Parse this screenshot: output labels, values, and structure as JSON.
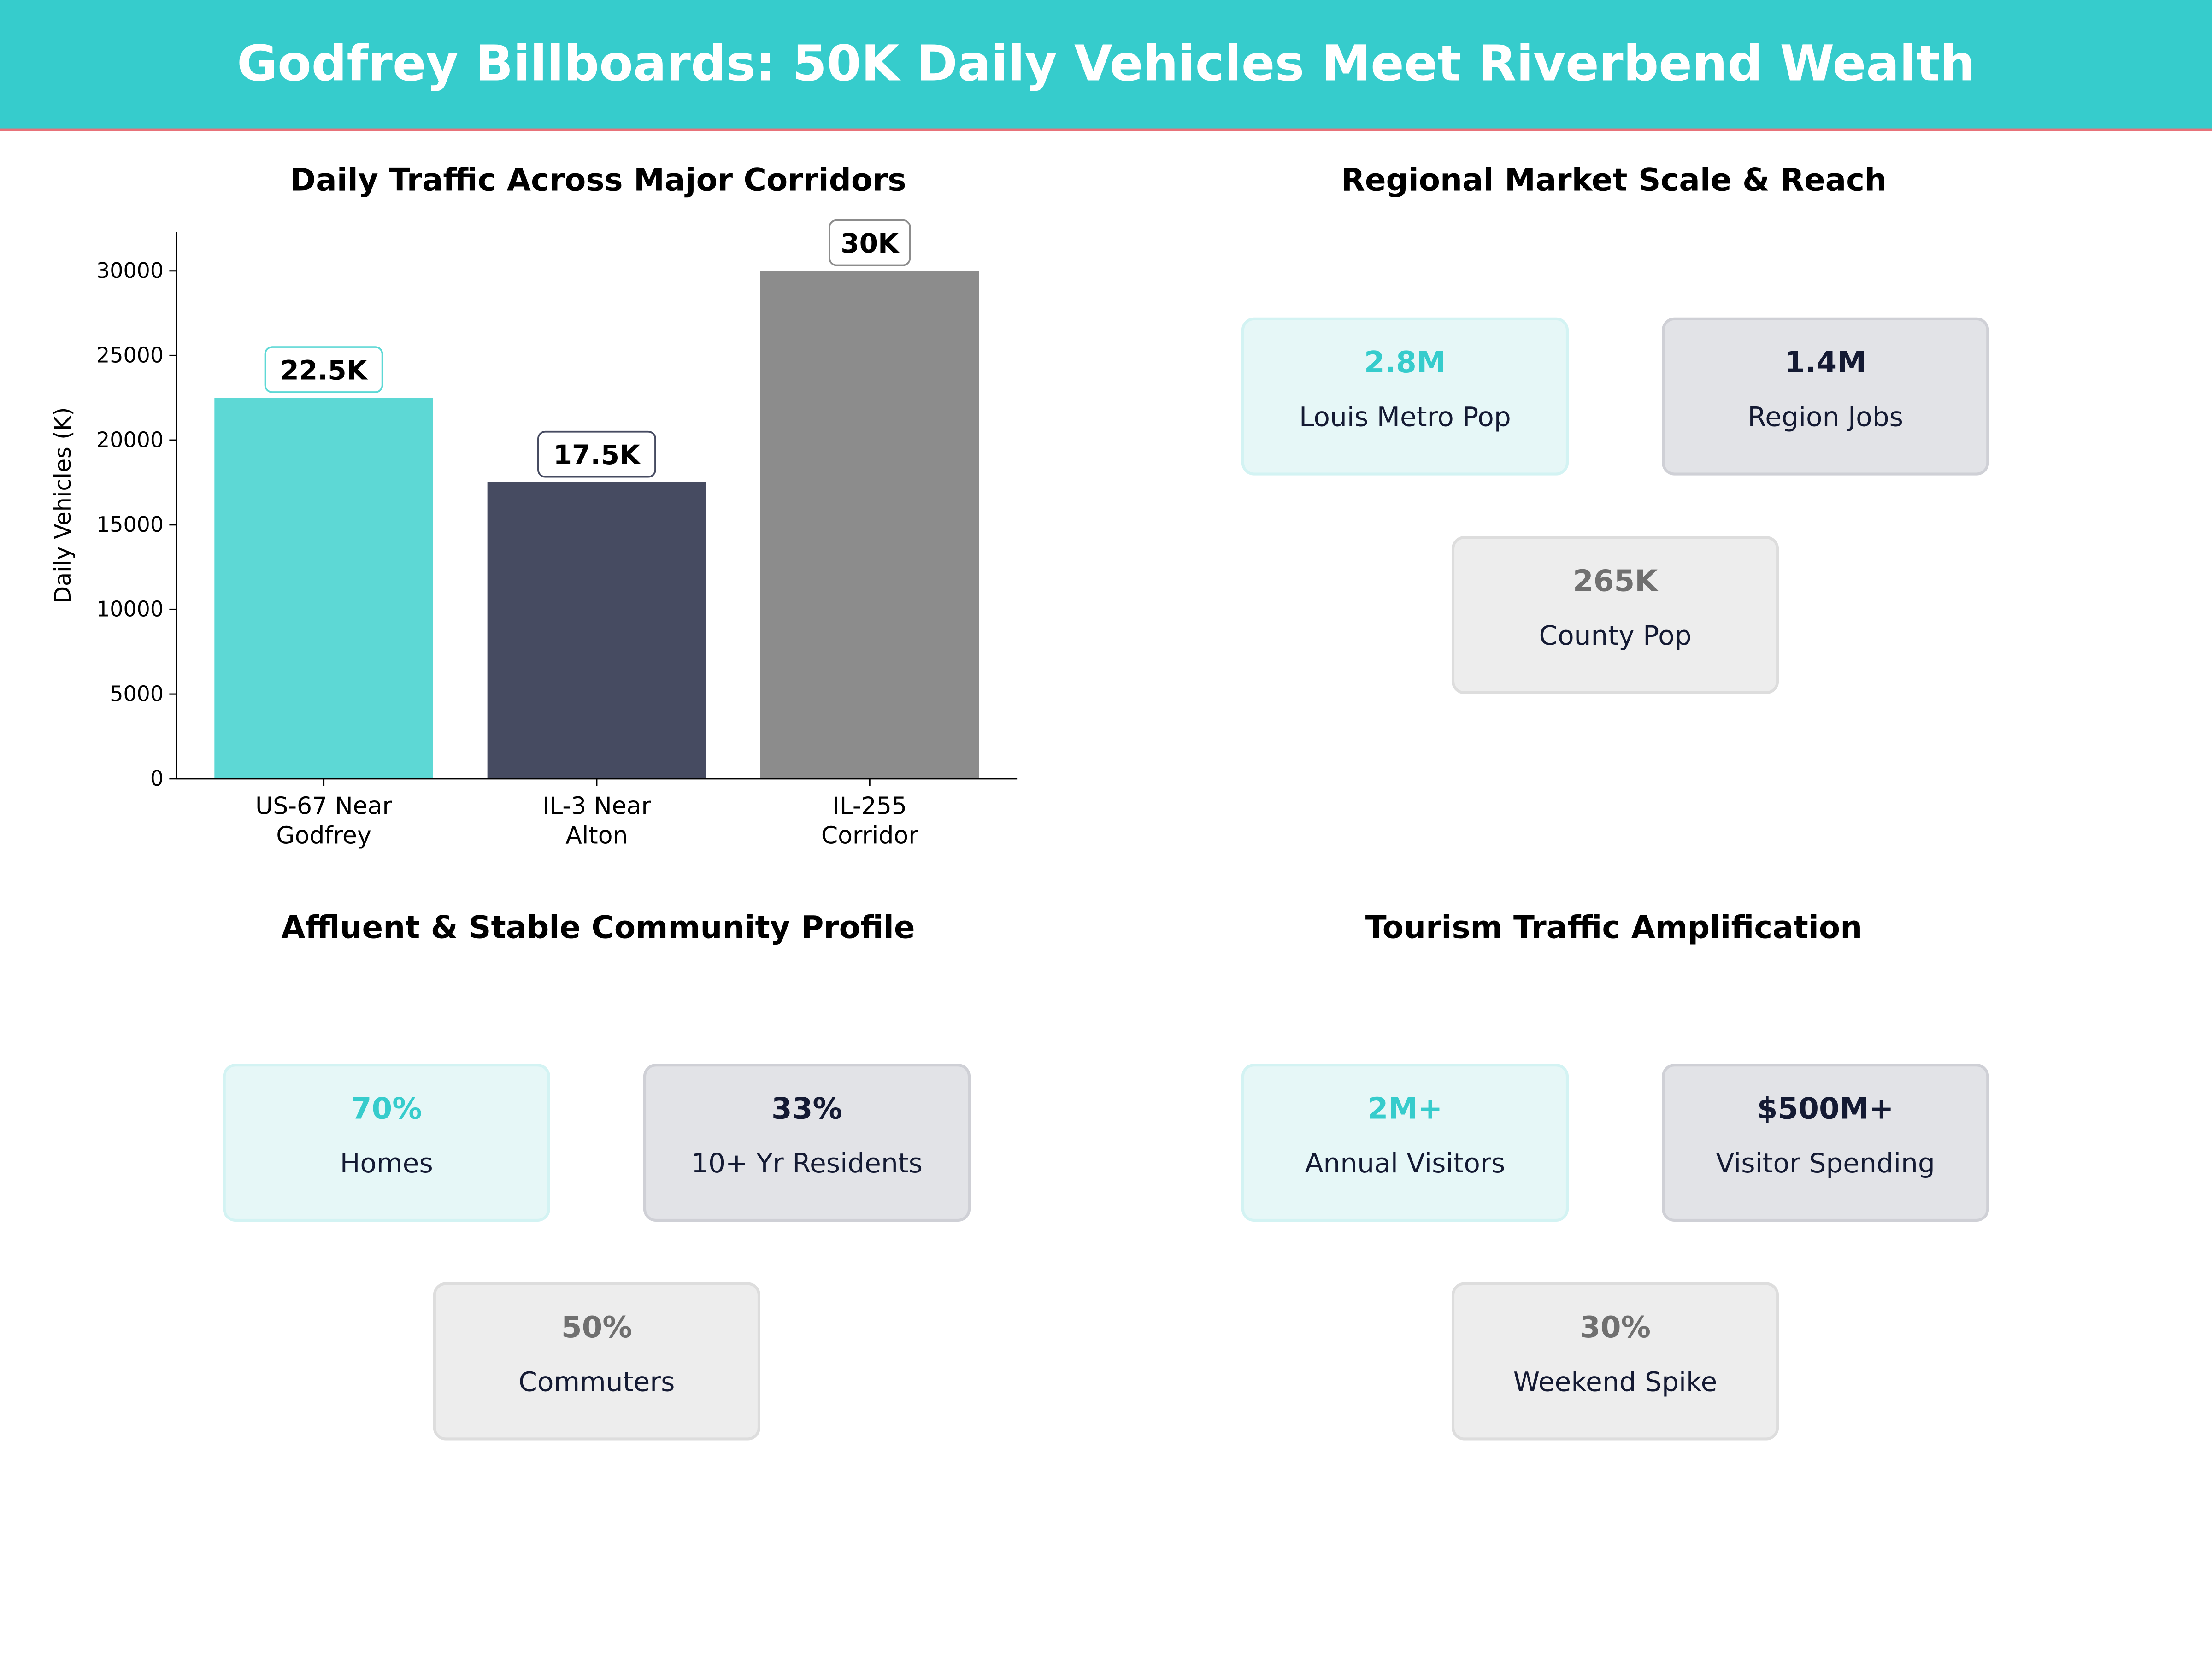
{
  "header": {
    "title": "Godfrey Billboards: 50K Daily Vehicles Meet Riverbend Wealth",
    "bg_color": "#36cccc",
    "accent_line": "#e8737a"
  },
  "chart_data": {
    "type": "bar",
    "title": "Daily Traffic Across Major Corridors",
    "ylabel": "Daily Vehicles (K)",
    "categories": [
      [
        "US-67 Near",
        "Godfrey"
      ],
      [
        "IL-3 Near",
        "Alton"
      ],
      [
        "IL-255",
        "Corridor"
      ]
    ],
    "values": [
      22500,
      17500,
      30000
    ],
    "data_labels": [
      "22.5K",
      "17.5K",
      "30K"
    ],
    "colors": [
      "#5dd8d5",
      "#464b61",
      "#8c8c8c"
    ],
    "label_border_colors": [
      "#5dd8d5",
      "#464b61",
      "#8c8c8c"
    ],
    "ylim": [
      0,
      32300
    ],
    "yticks": [
      0,
      5000,
      10000,
      15000,
      20000,
      25000,
      30000
    ],
    "grid": false
  },
  "panels": [
    {
      "title": "Regional Market Scale & Reach",
      "cards": [
        {
          "value": "2.8M",
          "label": "Louis Metro Pop"
        },
        {
          "value": "1.4M",
          "label": "Region Jobs"
        },
        {
          "value": "265K",
          "label": "County Pop"
        }
      ]
    },
    {
      "title": "Affluent & Stable Community Profile",
      "cards": [
        {
          "value": "70%",
          "label": "Homes"
        },
        {
          "value": "33%",
          "label": "10+ Yr Residents"
        },
        {
          "value": "50%",
          "label": "Commuters"
        }
      ]
    },
    {
      "title": "Tourism Traffic Amplification",
      "cards": [
        {
          "value": "2M+",
          "label": "Annual Visitors"
        },
        {
          "value": "$500M+",
          "label": "Visitor Spending"
        },
        {
          "value": "30%",
          "label": "Weekend Spike"
        }
      ]
    }
  ]
}
